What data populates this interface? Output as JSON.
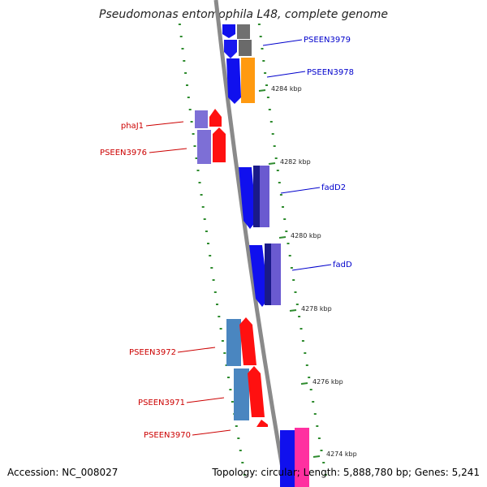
{
  "title": "Pseudomonas entomophila L48, complete genome",
  "accession": "Accession: NC_008027",
  "summary": "Topology: circular; Length: 5,888,780 bp; Genes: 5,241",
  "colors": {
    "backbone": "#8a8a8a",
    "scale_dots": "#2e8b2e",
    "forward_label": "#0000cc",
    "reverse_label": "#cc0000"
  },
  "ticks": [
    "4284 kbp",
    "4282 kbp",
    "4280 kbp",
    "4278 kbp",
    "4276 kbp",
    "4274 kbp"
  ],
  "genes": [
    {
      "label": "PSEEN3979",
      "strand": "forward"
    },
    {
      "label": "PSEEN3978",
      "strand": "forward"
    },
    {
      "label": "phaJ1",
      "strand": "reverse"
    },
    {
      "label": "PSEEN3976",
      "strand": "reverse"
    },
    {
      "label": "fadD2",
      "strand": "forward"
    },
    {
      "label": "fadD",
      "strand": "forward"
    },
    {
      "label": "PSEEN3972",
      "strand": "reverse"
    },
    {
      "label": "PSEEN3971",
      "strand": "reverse"
    },
    {
      "label": "PSEEN3970",
      "strand": "reverse"
    }
  ]
}
